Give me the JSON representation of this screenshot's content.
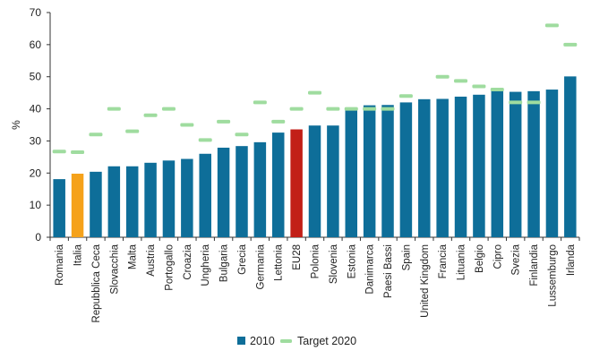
{
  "chart_data": {
    "type": "bar",
    "ylabel": "%",
    "ylim": [
      0,
      70
    ],
    "yticks": [
      0,
      10,
      20,
      30,
      40,
      50,
      60,
      70
    ],
    "grid": false,
    "legend_position": "bottom-center",
    "categories": [
      "Romania",
      "Italia",
      "Repubblica Ceca",
      "Slovacchia",
      "Malta",
      "Austria",
      "Portogallo",
      "Croazia",
      "Ungheria",
      "Bulgaria",
      "Grecia",
      "Germania",
      "Lettonia",
      "EU28",
      "Polonia",
      "Slovenia",
      "Estonia",
      "Danimarca",
      "Paesi Bassi",
      "Spain",
      "United Kingdom",
      "Francia",
      "Lituania",
      "Belgio",
      "Cipro",
      "Svezia",
      "Finlandia",
      "Lussemburgo",
      "Irlanda"
    ],
    "series": [
      {
        "name": "2010",
        "kind": "bar",
        "color": "#0e6e99",
        "values": [
          18.1,
          19.8,
          20.4,
          22.1,
          22.1,
          23.2,
          23.9,
          24.4,
          26.0,
          27.9,
          28.4,
          29.6,
          32.6,
          33.6,
          34.8,
          34.8,
          40.0,
          41.1,
          41.2,
          42.0,
          43.0,
          43.1,
          43.8,
          44.4,
          45.9,
          45.3,
          45.5,
          46.0,
          50.1
        ]
      },
      {
        "name": "Target 2020",
        "kind": "marker",
        "color": "#9fdc9f",
        "values": [
          26.7,
          26.5,
          32.0,
          40.0,
          33.0,
          38.0,
          40.0,
          35.0,
          30.3,
          36.0,
          32.0,
          42.0,
          36.0,
          40.0,
          45.0,
          40.0,
          40.0,
          40.0,
          40.0,
          44.0,
          null,
          50.0,
          48.7,
          47.0,
          46.0,
          42.0,
          42.0,
          66.0,
          60.0
        ]
      }
    ],
    "highlight_colors": {
      "Italia": "#f5a21b",
      "EU28": "#c21f17"
    }
  }
}
